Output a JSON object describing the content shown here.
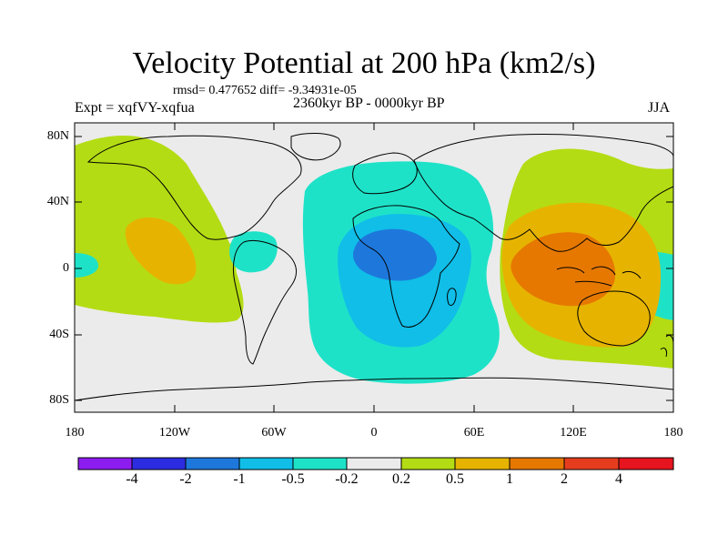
{
  "header": {
    "title": "Velocity Potential at 200 hPa (km2/s)",
    "stats": "rmsd= 0.477652 diff= -9.34931e-05",
    "experiment": "Expt = xqfVY-xqfua",
    "period": "2360kyr BP - 0000kyr BP",
    "season": "JJA"
  },
  "map": {
    "lat_labels": [
      "80N",
      "40N",
      "0",
      "40S",
      "80S"
    ],
    "lon_labels": [
      "180",
      "120W",
      "60W",
      "0",
      "60E",
      "120E",
      "180"
    ]
  },
  "colorbar": {
    "colors": [
      "#8c1cf0",
      "#2c2ce0",
      "#1e78dc",
      "#10bee8",
      "#1ee2c8",
      "#ebebeb",
      "#b4dc14",
      "#e6b400",
      "#e67800",
      "#e63c1e",
      "#e6141e"
    ],
    "labels": [
      "-4",
      "-2",
      "-1",
      "-0.5",
      "-0.2",
      "0.2",
      "0.5",
      "1",
      "2",
      "4"
    ]
  }
}
